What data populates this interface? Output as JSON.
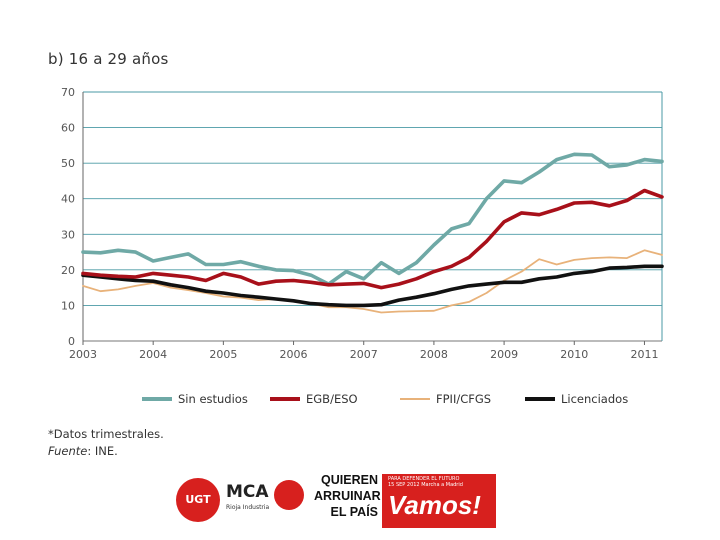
{
  "chart_data": {
    "type": "line",
    "title": "b) 16 a 29 años",
    "xlabel": "",
    "ylabel": "",
    "ylim": [
      0,
      70
    ],
    "yticks": [
      0,
      10,
      20,
      30,
      40,
      50,
      60,
      70
    ],
    "xlim": [
      2003,
      2011.25
    ],
    "xtick_labels": [
      "2003",
      "2004",
      "2005",
      "2006",
      "2007",
      "2008",
      "2009",
      "2010",
      "2011"
    ],
    "grid": true,
    "legend_position": "bottom",
    "x": [
      2003.0,
      2003.25,
      2003.5,
      2003.75,
      2004.0,
      2004.25,
      2004.5,
      2004.75,
      2005.0,
      2005.25,
      2005.5,
      2005.75,
      2006.0,
      2006.25,
      2006.5,
      2006.75,
      2007.0,
      2007.25,
      2007.5,
      2007.75,
      2008.0,
      2008.25,
      2008.5,
      2008.75,
      2009.0,
      2009.25,
      2009.5,
      2009.75,
      2010.0,
      2010.25,
      2010.5,
      2010.75,
      2011.0,
      2011.25
    ],
    "series": [
      {
        "name": "Sin estudios",
        "color": "#6fa9a6",
        "values": [
          25,
          24.8,
          25.5,
          25,
          22.5,
          23.5,
          24.5,
          21.5,
          21.5,
          22.3,
          21,
          20,
          19.8,
          18.5,
          16,
          19.5,
          17.5,
          22,
          19,
          22,
          27,
          31.5,
          33,
          40,
          45,
          44.5,
          47.5,
          51,
          52.5,
          52.3,
          49,
          49.5,
          51,
          50.5
        ]
      },
      {
        "name": "EGB/ESO",
        "color": "#a8101a",
        "values": [
          19,
          18.5,
          18.2,
          18,
          19,
          18.5,
          18,
          17,
          19,
          18,
          16,
          16.8,
          17,
          16.5,
          15.8,
          16,
          16.2,
          15,
          16,
          17.5,
          19.5,
          21,
          23.5,
          28,
          33.5,
          36,
          35.5,
          37,
          38.8,
          39,
          38,
          39.5,
          42.3,
          40.5
        ]
      },
      {
        "name": "FPII/CFGS",
        "color": "#e8b27a",
        "values": [
          15.5,
          14,
          14.5,
          15.5,
          16.3,
          15,
          14.3,
          13.5,
          12.5,
          12.2,
          11.5,
          11.8,
          11.5,
          10.5,
          9.5,
          9.5,
          9,
          8,
          8.3,
          8.4,
          8.5,
          10,
          11,
          13.5,
          17,
          19.5,
          23,
          21.5,
          22.8,
          23.3,
          23.5,
          23.3,
          25.5,
          24.2
        ]
      },
      {
        "name": "Licenciados",
        "color": "#111111",
        "values": [
          18.5,
          18,
          17.5,
          17,
          16.8,
          15.8,
          15,
          14,
          13.5,
          12.8,
          12.3,
          11.8,
          11.3,
          10.5,
          10.2,
          10,
          10,
          10.2,
          11.5,
          12.3,
          13.3,
          14.5,
          15.5,
          16,
          16.5,
          16.5,
          17.5,
          18,
          19,
          19.5,
          20.5,
          20.7,
          21,
          21
        ]
      }
    ]
  },
  "footnote": {
    "line1": "*Datos trimestrales.",
    "source_label": "Fuente",
    "source_value": ": INE."
  },
  "logos": {
    "ugt": "UGT",
    "mca": "MCA",
    "mca_sub": "Rioja Industria",
    "banner_line1": "QUIEREN",
    "banner_line2": "ARRUINAR",
    "banner_line3": "EL PAÍS",
    "banner_small1": "PARA DEFENDER EL FUTURO",
    "banner_small2": "15 SEP 2012 Marcha a Madrid",
    "banner_big": "Vamos!"
  }
}
